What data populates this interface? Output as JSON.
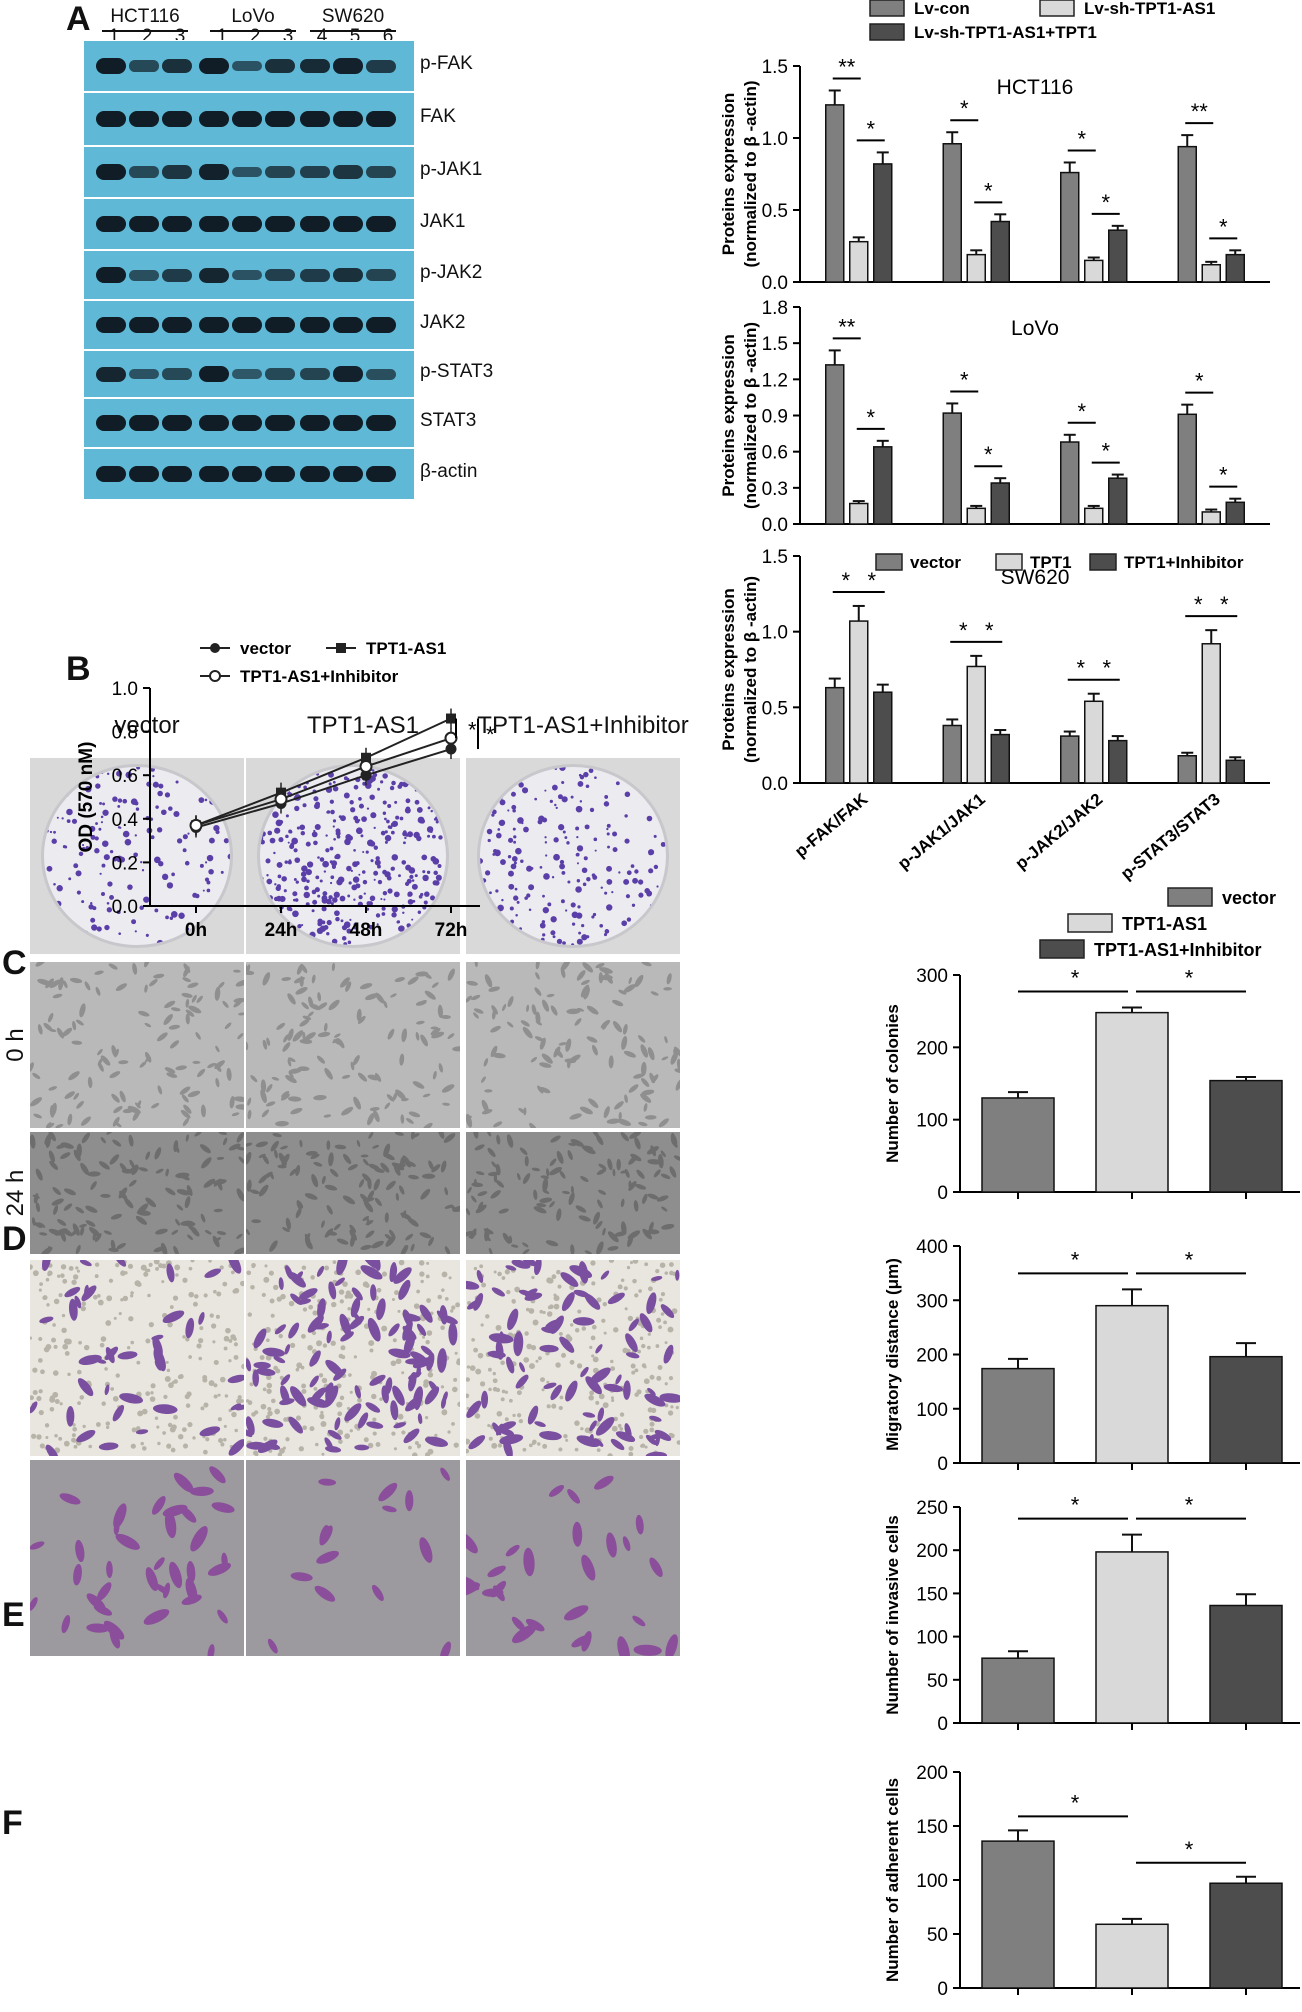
{
  "panels": {
    "A": "A",
    "B": "B",
    "C": "C",
    "D": "D",
    "E": "E",
    "F": "F"
  },
  "western": {
    "groups": [
      {
        "name": "HCT116",
        "lanes": [
          "1",
          "2",
          "3"
        ]
      },
      {
        "name": "LoVo",
        "lanes": [
          "1",
          "2",
          "3"
        ]
      },
      {
        "name": "SW620",
        "lanes": [
          "4",
          "5",
          "6"
        ]
      }
    ],
    "proteins": [
      "p-FAK",
      "FAK",
      "p-JAK1",
      "JAK1",
      "p-JAK2",
      "JAK2",
      "p-STAT3",
      "STAT3",
      "β-actin"
    ],
    "strip_color": "#5fb9d6",
    "band_intensities": [
      [
        1,
        0.55,
        0.8,
        1,
        0.45,
        0.8,
        0.85,
        0.95,
        0.7
      ],
      [
        1,
        1,
        1,
        1,
        1,
        1,
        1,
        1,
        1
      ],
      [
        1,
        0.55,
        0.75,
        0.95,
        0.45,
        0.6,
        0.65,
        0.75,
        0.6
      ],
      [
        1,
        1,
        1,
        1,
        1,
        1,
        1,
        1,
        1
      ],
      [
        1,
        0.5,
        0.7,
        0.9,
        0.45,
        0.65,
        0.7,
        0.8,
        0.6
      ],
      [
        1,
        1,
        1,
        1,
        1,
        1,
        1,
        1,
        1
      ],
      [
        0.9,
        0.45,
        0.55,
        1,
        0.4,
        0.55,
        0.6,
        0.95,
        0.5
      ],
      [
        1,
        1,
        1,
        1,
        1,
        1,
        1,
        1,
        1
      ],
      [
        1,
        1,
        1,
        1,
        1,
        1,
        1,
        1,
        1
      ]
    ]
  },
  "images": {
    "C": {
      "titles": [
        "vector",
        "TPT1-AS1",
        "TPT1-AS1+Inhibitor"
      ],
      "density": [
        0.25,
        0.75,
        0.35
      ]
    },
    "D": {
      "row_labels": [
        "0 h",
        "24 h"
      ]
    },
    "E": {},
    "F": {}
  },
  "colors": {
    "dark": "#7f7f7f",
    "light": "#d9d9d9",
    "darkest": "#4d4d4d"
  },
  "chart_data": [
    {
      "id": "A-HCT116",
      "type": "bar",
      "title": "HCT116",
      "ylabel": "Proteins expression (normalized to β -actin)",
      "ylim": [
        0,
        1.5
      ],
      "yticks": [
        "0.0",
        "0.5",
        "1.0",
        "1.5"
      ],
      "categories": [
        "p-FAK/FAK",
        "p-JAK1/JAK1",
        "p-JAK2/JAK2",
        "p-STAT3/STAT3"
      ],
      "legend": [
        "Lv-con",
        "Lv-sh-TPT1-AS1",
        "Lv-sh-TPT1-AS1+TPT1"
      ],
      "series": [
        {
          "name": "Lv-con",
          "values": [
            1.23,
            0.96,
            0.76,
            0.94
          ],
          "errors": [
            0.1,
            0.08,
            0.07,
            0.08
          ]
        },
        {
          "name": "Lv-sh-TPT1-AS1",
          "values": [
            0.28,
            0.19,
            0.15,
            0.12
          ],
          "errors": [
            0.03,
            0.03,
            0.02,
            0.02
          ]
        },
        {
          "name": "Lv-sh-TPT1-AS1+TPT1",
          "values": [
            0.82,
            0.42,
            0.36,
            0.19
          ],
          "errors": [
            0.08,
            0.05,
            0.03,
            0.03
          ]
        }
      ],
      "significance": [
        "**",
        "*",
        "*",
        "*",
        "*",
        "*",
        "**",
        "*"
      ]
    },
    {
      "id": "A-LoVo",
      "type": "bar",
      "title": "LoVo",
      "ylabel": "Proteins expression (normalized to β -actin)",
      "ylim": [
        0,
        1.8
      ],
      "yticks": [
        "0.0",
        "0.3",
        "0.6",
        "0.9",
        "1.2",
        "1.5",
        "1.8"
      ],
      "categories": [
        "p-FAK/FAK",
        "p-JAK1/JAK1",
        "p-JAK2/JAK2",
        "p-STAT3/STAT3"
      ],
      "series": [
        {
          "name": "Lv-con",
          "values": [
            1.32,
            0.92,
            0.68,
            0.91
          ],
          "errors": [
            0.12,
            0.08,
            0.06,
            0.08
          ]
        },
        {
          "name": "Lv-sh-TPT1-AS1",
          "values": [
            0.17,
            0.13,
            0.13,
            0.1
          ],
          "errors": [
            0.02,
            0.02,
            0.02,
            0.02
          ]
        },
        {
          "name": "Lv-sh-TPT1-AS1+TPT1",
          "values": [
            0.64,
            0.34,
            0.38,
            0.18
          ],
          "errors": [
            0.05,
            0.04,
            0.03,
            0.03
          ]
        }
      ],
      "significance": [
        "**",
        "*",
        "*",
        "*",
        "*",
        "*",
        "*",
        "*"
      ]
    },
    {
      "id": "A-SW620",
      "type": "bar",
      "title": "SW620",
      "ylabel": "Proteins expression (normalized to β -actin)",
      "ylim": [
        0,
        1.5
      ],
      "yticks": [
        "0.0",
        "0.5",
        "1.0",
        "1.5"
      ],
      "categories": [
        "p-FAK/FAK",
        "p-JAK1/JAK1",
        "p-JAK2/JAK2",
        "p-STAT3/STAT3"
      ],
      "legend": [
        "vector",
        "TPT1",
        "TPT1+Inhibitor"
      ],
      "series": [
        {
          "name": "vector",
          "values": [
            0.63,
            0.38,
            0.31,
            0.18
          ],
          "errors": [
            0.06,
            0.04,
            0.03,
            0.02
          ]
        },
        {
          "name": "TPT1",
          "values": [
            1.07,
            0.77,
            0.54,
            0.92
          ],
          "errors": [
            0.1,
            0.07,
            0.05,
            0.09
          ]
        },
        {
          "name": "TPT1+Inhibitor",
          "values": [
            0.6,
            0.32,
            0.28,
            0.15
          ],
          "errors": [
            0.05,
            0.03,
            0.03,
            0.02
          ]
        }
      ],
      "significance": [
        "*",
        "*",
        "*",
        "*",
        "*",
        "*",
        "*",
        "*"
      ]
    },
    {
      "id": "B",
      "type": "line",
      "ylabel": "OD (570 nM)",
      "ylim": [
        0,
        1.0
      ],
      "yticks": [
        "0.0",
        "0.2",
        "0.4",
        "0.6",
        "0.8",
        "1.0"
      ],
      "categories": [
        "0h",
        "24h",
        "48h",
        "72h"
      ],
      "legend": [
        "vector",
        "TPT1-AS1",
        "TPT1-AS1+Inhibitor"
      ],
      "series": [
        {
          "name": "vector",
          "values": [
            0.36,
            0.47,
            0.6,
            0.72
          ]
        },
        {
          "name": "TPT1-AS1",
          "values": [
            0.37,
            0.52,
            0.68,
            0.86
          ]
        },
        {
          "name": "TPT1-AS1+Inhibitor",
          "values": [
            0.37,
            0.49,
            0.64,
            0.77
          ]
        }
      ],
      "significance": [
        "*",
        "*"
      ]
    },
    {
      "id": "C",
      "type": "bar",
      "ylabel": "Number of colonies",
      "ylim": [
        0,
        300
      ],
      "yticks": [
        "0",
        "100",
        "200",
        "300"
      ],
      "legend": [
        "vector",
        "TPT1-AS1",
        "TPT1-AS1+Inhibitor"
      ],
      "values": [
        130,
        248,
        154
      ],
      "errors": [
        8,
        7,
        5
      ],
      "significance": [
        "*",
        "*"
      ]
    },
    {
      "id": "D",
      "type": "bar",
      "ylabel": "Migratory distance (μm)",
      "ylim": [
        0,
        400
      ],
      "yticks": [
        "0",
        "100",
        "200",
        "300",
        "400"
      ],
      "values": [
        174,
        290,
        196
      ],
      "errors": [
        18,
        30,
        25
      ],
      "significance": [
        "*",
        "*"
      ]
    },
    {
      "id": "E",
      "type": "bar",
      "ylabel": "Number of invasive cells",
      "ylim": [
        0,
        250
      ],
      "yticks": [
        "0",
        "50",
        "100",
        "150",
        "200",
        "250"
      ],
      "values": [
        75,
        198,
        136
      ],
      "errors": [
        8,
        20,
        13
      ],
      "significance": [
        "*",
        "*"
      ]
    },
    {
      "id": "F",
      "type": "bar",
      "ylabel": "Number of adherent cells",
      "ylim": [
        0,
        200
      ],
      "yticks": [
        "0",
        "50",
        "100",
        "150",
        "200"
      ],
      "values": [
        136,
        59,
        97
      ],
      "errors": [
        10,
        5,
        6
      ],
      "significance": [
        "*",
        "*"
      ]
    }
  ]
}
